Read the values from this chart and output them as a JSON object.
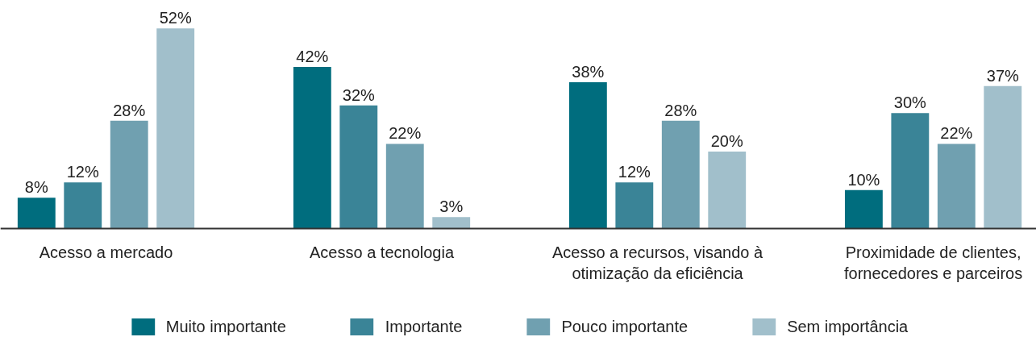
{
  "chart_data": {
    "type": "bar",
    "categories": [
      "Acesso a mercado",
      "Acesso a tecnologia",
      "Acesso a recursos, visando à otimização da eficiência",
      "Proximidade de clientes, fornecedores e parceiros"
    ],
    "series": [
      {
        "name": "Muito importante",
        "color": "#006d7e",
        "values": [
          8,
          42,
          38,
          10
        ],
        "value_labels": [
          "8%",
          "42%",
          "38%",
          "10%"
        ]
      },
      {
        "name": "Importante",
        "color": "#3a8497",
        "values": [
          12,
          32,
          12,
          30
        ],
        "value_labels": [
          "12%",
          "32%",
          "12%",
          "30%"
        ]
      },
      {
        "name": "Pouco importante",
        "color": "#70a0b0",
        "values": [
          28,
          22,
          28,
          22
        ],
        "value_labels": [
          "28%",
          "22%",
          "28%",
          "22%"
        ]
      },
      {
        "name": "Sem importância",
        "color": "#a1bfcb",
        "values": [
          52,
          3,
          20,
          37
        ],
        "value_labels": [
          "52%",
          "3%",
          "20%",
          "37%"
        ]
      }
    ],
    "legend": "bottom"
  }
}
